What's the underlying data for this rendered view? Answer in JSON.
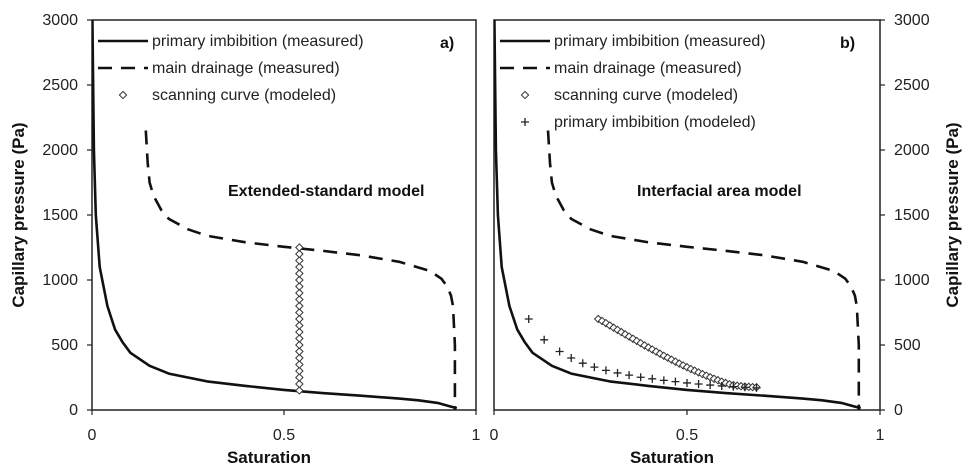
{
  "chart_data": [
    {
      "panel": "a",
      "panel_label": "a)",
      "type": "line",
      "annotation": "Extended-standard model",
      "xlabel": "Saturation",
      "ylabel": "Capillary pressure (Pa)",
      "xlim": [
        0,
        1
      ],
      "ylim": [
        0,
        3000
      ],
      "xticks": [
        "0",
        "0.5",
        "1"
      ],
      "yticks": [
        "0",
        "500",
        "1000",
        "1500",
        "2000",
        "2500",
        "3000"
      ],
      "legend_position": "top",
      "series": [
        {
          "name": "primary imbibition (measured)",
          "style": "solid",
          "x": [
            0.001,
            0.005,
            0.01,
            0.02,
            0.04,
            0.06,
            0.08,
            0.1,
            0.15,
            0.2,
            0.3,
            0.4,
            0.5,
            0.6,
            0.7,
            0.8,
            0.85,
            0.9,
            0.93,
            0.95
          ],
          "y": [
            3000,
            2000,
            1500,
            1100,
            800,
            620,
            520,
            440,
            340,
            280,
            220,
            185,
            155,
            130,
            110,
            88,
            75,
            55,
            30,
            15
          ]
        },
        {
          "name": "main drainage (measured)",
          "style": "dashed",
          "x": [
            0.14,
            0.145,
            0.15,
            0.16,
            0.18,
            0.2,
            0.25,
            0.3,
            0.4,
            0.5,
            0.6,
            0.7,
            0.8,
            0.88,
            0.91,
            0.925,
            0.935,
            0.94,
            0.945,
            0.945
          ],
          "y": [
            2150,
            1900,
            1750,
            1650,
            1540,
            1470,
            1390,
            1340,
            1290,
            1255,
            1225,
            1190,
            1140,
            1070,
            1010,
            950,
            880,
            800,
            500,
            0
          ]
        },
        {
          "name": "scanning curve (modeled)",
          "style": "markers-diamond",
          "x": [
            0.54,
            0.54,
            0.54,
            0.54,
            0.54,
            0.54,
            0.54,
            0.54,
            0.54,
            0.54,
            0.54,
            0.54,
            0.54,
            0.54,
            0.54,
            0.54,
            0.54,
            0.54,
            0.54,
            0.54,
            0.54,
            0.54,
            0.54
          ],
          "y": [
            150,
            200,
            250,
            300,
            350,
            400,
            450,
            500,
            550,
            600,
            650,
            700,
            750,
            800,
            850,
            900,
            950,
            1000,
            1050,
            1100,
            1150,
            1200,
            1250
          ]
        }
      ]
    },
    {
      "panel": "b",
      "panel_label": "b)",
      "type": "line",
      "annotation": "Interfacial area model",
      "xlabel": "Saturation",
      "ylabel": "Capillary pressure (Pa)",
      "xlim": [
        0,
        1
      ],
      "ylim": [
        0,
        3000
      ],
      "xticks": [
        "0",
        "0.5",
        "1"
      ],
      "yticks": [
        "0",
        "500",
        "1000",
        "1500",
        "2000",
        "2500",
        "3000"
      ],
      "legend_position": "top",
      "series": [
        {
          "name": "primary imbibition (measured)",
          "style": "solid",
          "x": [
            0.001,
            0.005,
            0.01,
            0.02,
            0.04,
            0.06,
            0.08,
            0.1,
            0.15,
            0.2,
            0.3,
            0.4,
            0.5,
            0.6,
            0.7,
            0.8,
            0.85,
            0.9,
            0.93,
            0.95
          ],
          "y": [
            3000,
            2000,
            1500,
            1100,
            800,
            620,
            520,
            440,
            340,
            280,
            220,
            185,
            155,
            130,
            110,
            88,
            75,
            55,
            30,
            15
          ]
        },
        {
          "name": "main drainage (measured)",
          "style": "dashed",
          "x": [
            0.14,
            0.145,
            0.15,
            0.16,
            0.18,
            0.2,
            0.25,
            0.3,
            0.4,
            0.5,
            0.6,
            0.7,
            0.8,
            0.88,
            0.91,
            0.925,
            0.935,
            0.94,
            0.945,
            0.945
          ],
          "y": [
            2150,
            1900,
            1750,
            1650,
            1540,
            1470,
            1390,
            1340,
            1290,
            1255,
            1225,
            1190,
            1140,
            1070,
            1010,
            950,
            880,
            800,
            500,
            0
          ]
        },
        {
          "name": "scanning curve (modeled)",
          "style": "markers-diamond",
          "x": [
            0.27,
            0.28,
            0.29,
            0.3,
            0.31,
            0.32,
            0.33,
            0.34,
            0.35,
            0.36,
            0.37,
            0.38,
            0.39,
            0.4,
            0.41,
            0.42,
            0.43,
            0.44,
            0.45,
            0.46,
            0.47,
            0.48,
            0.49,
            0.5,
            0.51,
            0.52,
            0.53,
            0.54,
            0.55,
            0.56,
            0.57,
            0.58,
            0.59,
            0.6,
            0.61,
            0.62,
            0.63,
            0.64,
            0.65,
            0.66,
            0.67,
            0.68
          ],
          "y": [
            700,
            685,
            668,
            650,
            633,
            616,
            599,
            582,
            565,
            548,
            531,
            514,
            497,
            481,
            465,
            449,
            433,
            417,
            402,
            387,
            372,
            357,
            343,
            329,
            315,
            302,
            289,
            276,
            264,
            252,
            240,
            229,
            218,
            208,
            198,
            192,
            187,
            183,
            180,
            178,
            176,
            175
          ]
        },
        {
          "name": "primary imbibition (modeled)",
          "style": "markers-plus",
          "x": [
            0.09,
            0.13,
            0.17,
            0.2,
            0.23,
            0.26,
            0.29,
            0.32,
            0.35,
            0.38,
            0.41,
            0.44,
            0.47,
            0.5,
            0.53,
            0.56,
            0.59,
            0.62,
            0.65,
            0.68
          ],
          "y": [
            700,
            540,
            450,
            400,
            360,
            330,
            305,
            285,
            268,
            252,
            240,
            228,
            218,
            208,
            200,
            192,
            185,
            180,
            175,
            170
          ]
        }
      ]
    }
  ]
}
